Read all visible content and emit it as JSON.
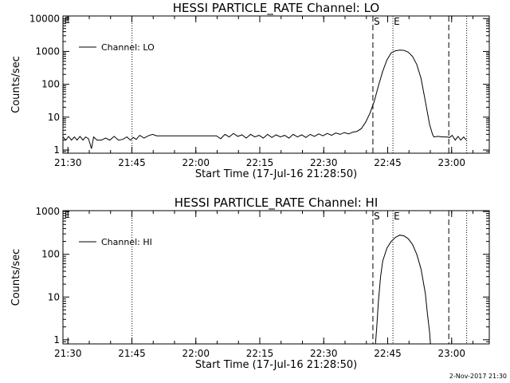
{
  "footer": {
    "date": "2-Nov-2017 21:30"
  },
  "chart_data": [
    {
      "type": "line",
      "title": "HESSI PARTICLE_RATE Channel: LO",
      "xlabel": "Start Time (17-Jul-16 21:28:50)",
      "ylabel": "Counts/sec",
      "x_unit": "minutes after 21:28:50 (17-Jul-16)",
      "xlim": [
        0,
        100
      ],
      "ylim": [
        0.8,
        12000
      ],
      "yscale": "log",
      "xticks": [
        {
          "x": 1.17,
          "label": "21:30"
        },
        {
          "x": 16.17,
          "label": "21:45"
        },
        {
          "x": 31.17,
          "label": "22:00"
        },
        {
          "x": 46.17,
          "label": "22:15"
        },
        {
          "x": 61.17,
          "label": "22:30"
        },
        {
          "x": 76.17,
          "label": "22:45"
        },
        {
          "x": 91.17,
          "label": "23:00"
        }
      ],
      "yticks": [
        {
          "y": 1,
          "label": "1"
        },
        {
          "y": 10,
          "label": "10"
        },
        {
          "y": 100,
          "label": "100"
        },
        {
          "y": 1000,
          "label": "1000"
        },
        {
          "y": 10000,
          "label": "10000"
        }
      ],
      "legend": {
        "label": "Channel: LO",
        "position": "top-left"
      },
      "markers": [
        {
          "x": 72.7,
          "style": "dashed",
          "label": "S"
        },
        {
          "x": 77.4,
          "style": "dotted",
          "label": "E"
        },
        {
          "x": 16.2,
          "style": "dotted",
          "label": ""
        },
        {
          "x": 90.5,
          "style": "dashed",
          "label": ""
        },
        {
          "x": 94.7,
          "style": "dotted",
          "label": ""
        }
      ],
      "corner_label": "E",
      "series": [
        {
          "name": "Channel: LO",
          "points": [
            [
              0,
              2.5
            ],
            [
              0.7,
              2
            ],
            [
              1.3,
              2.6
            ],
            [
              2,
              2
            ],
            [
              2.7,
              2.5
            ],
            [
              3.3,
              2
            ],
            [
              4,
              2.6
            ],
            [
              4.7,
              2
            ],
            [
              5.3,
              2.5
            ],
            [
              6,
              2.2
            ],
            [
              6.7,
              1.1
            ],
            [
              7.2,
              2.5
            ],
            [
              8,
              2
            ],
            [
              9,
              2
            ],
            [
              10,
              2.3
            ],
            [
              11,
              2
            ],
            [
              12,
              2.6
            ],
            [
              13,
              2
            ],
            [
              14,
              2.1
            ],
            [
              15,
              2.5
            ],
            [
              15.8,
              2
            ],
            [
              16.5,
              2.4
            ],
            [
              17.2,
              2.1
            ],
            [
              18,
              2.8
            ],
            [
              19,
              2.3
            ],
            [
              20,
              2.7
            ],
            [
              21,
              3
            ],
            [
              22,
              2.7
            ],
            [
              24,
              2.7
            ],
            [
              26,
              2.7
            ],
            [
              28,
              2.7
            ],
            [
              30,
              2.7
            ],
            [
              32,
              2.7
            ],
            [
              34,
              2.7
            ],
            [
              36,
              2.7
            ],
            [
              37,
              2.2
            ],
            [
              38,
              3
            ],
            [
              39,
              2.5
            ],
            [
              40,
              3.2
            ],
            [
              41,
              2.6
            ],
            [
              42,
              2.9
            ],
            [
              43,
              2.3
            ],
            [
              44,
              3
            ],
            [
              45,
              2.5
            ],
            [
              46,
              2.8
            ],
            [
              47,
              2.3
            ],
            [
              48,
              3
            ],
            [
              49,
              2.4
            ],
            [
              50,
              2.9
            ],
            [
              51,
              2.5
            ],
            [
              52,
              2.8
            ],
            [
              53,
              2.3
            ],
            [
              54,
              3
            ],
            [
              55,
              2.5
            ],
            [
              56,
              2.9
            ],
            [
              57,
              2.4
            ],
            [
              58,
              3
            ],
            [
              59,
              2.6
            ],
            [
              60,
              3.1
            ],
            [
              61,
              2.7
            ],
            [
              62,
              3.2
            ],
            [
              63,
              2.8
            ],
            [
              64,
              3.3
            ],
            [
              65,
              3
            ],
            [
              66,
              3.4
            ],
            [
              67,
              3.1
            ],
            [
              68,
              3.5
            ],
            [
              69,
              3.7
            ],
            [
              70,
              4.5
            ],
            [
              71,
              7
            ],
            [
              72,
              13
            ],
            [
              73,
              30
            ],
            [
              74,
              90
            ],
            [
              75,
              250
            ],
            [
              76,
              550
            ],
            [
              77,
              900
            ],
            [
              78,
              1050
            ],
            [
              79,
              1100
            ],
            [
              80,
              1080
            ],
            [
              81,
              950
            ],
            [
              82,
              700
            ],
            [
              83,
              400
            ],
            [
              84,
              150
            ],
            [
              85,
              30
            ],
            [
              86,
              6
            ],
            [
              86.7,
              3
            ],
            [
              87,
              2.5
            ],
            [
              88,
              2.6
            ],
            [
              89,
              2.5
            ],
            [
              90,
              2.5
            ],
            [
              90.7,
              2.4
            ],
            [
              91.3,
              2.8
            ],
            [
              92,
              2
            ],
            [
              92.7,
              2.6
            ],
            [
              93.3,
              2
            ],
            [
              94,
              2.5
            ],
            [
              94.6,
              2
            ]
          ]
        }
      ]
    },
    {
      "type": "line",
      "title": "HESSI PARTICLE_RATE Channel: HI",
      "xlabel": "Start Time (17-Jul-16 21:28:50)",
      "ylabel": "Counts/sec",
      "x_unit": "minutes after 21:28:50 (17-Jul-16)",
      "xlim": [
        0,
        100
      ],
      "ylim": [
        0.8,
        1050
      ],
      "yscale": "log",
      "xticks": [
        {
          "x": 1.17,
          "label": "21:30"
        },
        {
          "x": 16.17,
          "label": "21:45"
        },
        {
          "x": 31.17,
          "label": "22:00"
        },
        {
          "x": 46.17,
          "label": "22:15"
        },
        {
          "x": 61.17,
          "label": "22:30"
        },
        {
          "x": 76.17,
          "label": "22:45"
        },
        {
          "x": 91.17,
          "label": "23:00"
        }
      ],
      "yticks": [
        {
          "y": 1,
          "label": "1"
        },
        {
          "y": 10,
          "label": "10"
        },
        {
          "y": 100,
          "label": "100"
        },
        {
          "y": 1000,
          "label": "1000"
        }
      ],
      "legend": {
        "label": "Channel: HI",
        "position": "top-left"
      },
      "markers": [
        {
          "x": 72.7,
          "style": "dashed",
          "label": "S"
        },
        {
          "x": 77.4,
          "style": "dotted",
          "label": "E"
        },
        {
          "x": 16.2,
          "style": "dotted",
          "label": ""
        },
        {
          "x": 90.5,
          "style": "dashed",
          "label": ""
        },
        {
          "x": 94.7,
          "style": "dotted",
          "label": ""
        }
      ],
      "corner_label": "E",
      "series": [
        {
          "name": "Channel: HI",
          "points": [
            [
              73.3,
              0.8
            ],
            [
              73.6,
              2
            ],
            [
              74,
              8
            ],
            [
              74.5,
              30
            ],
            [
              75,
              70
            ],
            [
              76,
              140
            ],
            [
              77,
              200
            ],
            [
              78,
              250
            ],
            [
              79,
              280
            ],
            [
              80,
              270
            ],
            [
              81,
              230
            ],
            [
              82,
              170
            ],
            [
              83,
              100
            ],
            [
              84,
              45
            ],
            [
              85,
              12
            ],
            [
              85.5,
              4
            ],
            [
              86,
              1.5
            ],
            [
              86.2,
              0.8
            ]
          ]
        }
      ]
    }
  ]
}
